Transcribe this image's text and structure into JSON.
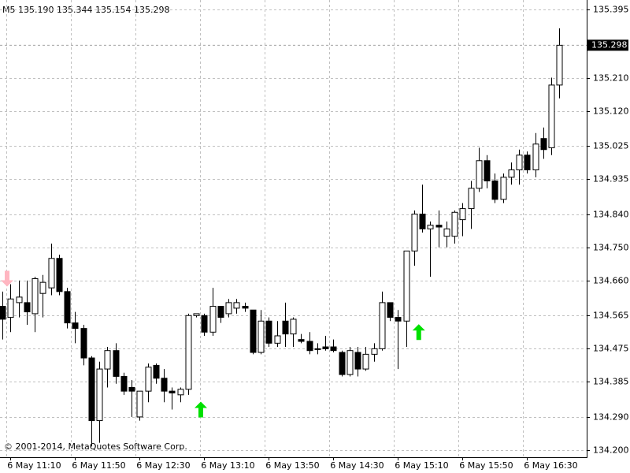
{
  "chart_data": {
    "type": "candlestick",
    "timeframe": "M5",
    "header_labels": [
      "135.190",
      "135.344",
      "135.154",
      "135.298"
    ],
    "copyright": "© 2001-2014, MetaQuotes Software Corp.",
    "current_price": {
      "value": 135.298,
      "label": "135.298"
    },
    "categories": [
      null,
      "6 May 11:10",
      null,
      null,
      null,
      null,
      null,
      null,
      null,
      "6 May 11:50",
      null,
      null,
      null,
      null,
      null,
      null,
      null,
      "6 May 12:30",
      null,
      null,
      null,
      null,
      null,
      null,
      null,
      "6 May 13:10",
      null,
      null,
      null,
      null,
      null,
      null,
      null,
      "6 May 13:50",
      null,
      null,
      null,
      null,
      null,
      null,
      null,
      "6 May 14:30",
      null,
      null,
      null,
      null,
      null,
      null,
      null,
      "6 May 15:10",
      null,
      null,
      null,
      null,
      null,
      null,
      null,
      "6 May 15:50",
      null,
      null,
      null,
      null,
      null,
      null,
      null,
      "6 May 16:30",
      null,
      null,
      null,
      null
    ],
    "open": [
      134.59,
      134.56,
      134.6,
      134.6,
      134.57,
      134.625,
      134.64,
      134.72,
      134.63,
      134.545,
      134.53,
      134.45,
      134.28,
      134.42,
      134.47,
      134.4,
      134.37,
      134.29,
      134.36,
      134.43,
      134.395,
      134.36,
      134.35,
      134.365,
      134.565,
      134.565,
      134.52,
      134.59,
      134.57,
      134.585,
      134.59,
      134.58,
      134.465,
      134.55,
      134.49,
      134.55,
      134.515,
      134.5,
      134.495,
      134.475,
      134.48,
      134.48,
      134.465,
      134.405,
      134.465,
      134.42,
      134.46,
      134.475,
      134.6,
      134.56,
      134.55,
      134.74,
      134.84,
      134.8,
      134.81,
      134.78,
      134.78,
      134.825,
      134.855,
      134.91,
      134.985,
      134.93,
      134.88,
      134.94,
      134.96,
      135.0,
      134.96,
      135.045,
      135.02,
      135.19
    ],
    "high": [
      134.63,
      134.65,
      134.66,
      134.66,
      134.67,
      134.675,
      134.76,
      134.73,
      134.64,
      134.575,
      134.54,
      134.455,
      134.44,
      134.48,
      134.49,
      134.41,
      134.39,
      134.36,
      134.435,
      134.435,
      134.42,
      134.37,
      134.37,
      134.57,
      134.57,
      134.57,
      134.64,
      134.59,
      134.61,
      134.61,
      134.6,
      134.58,
      134.58,
      134.56,
      134.55,
      134.6,
      134.56,
      134.515,
      134.52,
      134.49,
      134.51,
      134.5,
      134.47,
      134.48,
      134.48,
      134.48,
      134.49,
      134.63,
      134.6,
      134.58,
      134.74,
      134.85,
      134.92,
      134.82,
      134.85,
      134.82,
      134.85,
      134.87,
      134.93,
      135.02,
      135.0,
      134.95,
      134.95,
      134.98,
      135.015,
      135.01,
      135.06,
      135.075,
      135.21,
      135.344
    ],
    "low": [
      134.5,
      134.52,
      134.56,
      134.54,
      134.52,
      134.56,
      134.62,
      134.62,
      134.53,
      134.49,
      134.43,
      134.21,
      134.22,
      134.37,
      134.38,
      134.35,
      134.29,
      134.28,
      134.33,
      134.38,
      134.33,
      134.31,
      134.33,
      134.35,
      134.56,
      134.51,
      134.51,
      134.545,
      134.56,
      134.57,
      134.575,
      134.46,
      134.46,
      134.48,
      134.48,
      134.48,
      134.48,
      134.49,
      134.46,
      134.46,
      134.47,
      134.465,
      134.4,
      134.4,
      134.4,
      134.415,
      134.44,
      134.47,
      134.55,
      134.42,
      134.48,
      134.7,
      134.79,
      134.67,
      134.75,
      134.75,
      134.76,
      134.78,
      134.8,
      134.9,
      134.91,
      134.87,
      134.87,
      134.92,
      134.92,
      134.95,
      134.94,
      134.99,
      135.0,
      135.154
    ],
    "close": [
      134.555,
      134.61,
      134.615,
      134.575,
      134.665,
      134.655,
      134.72,
      134.63,
      134.545,
      134.53,
      134.45,
      134.28,
      134.42,
      134.47,
      134.4,
      134.36,
      134.36,
      134.36,
      134.425,
      134.395,
      134.36,
      134.355,
      134.365,
      134.565,
      134.57,
      134.52,
      134.59,
      134.56,
      134.6,
      134.6,
      134.585,
      134.465,
      134.55,
      134.49,
      134.51,
      134.515,
      134.555,
      134.495,
      134.47,
      134.475,
      134.475,
      134.47,
      134.405,
      134.47,
      134.42,
      134.46,
      134.475,
      134.6,
      134.56,
      134.55,
      134.74,
      134.84,
      134.8,
      134.81,
      134.805,
      134.8,
      134.845,
      134.855,
      134.91,
      134.985,
      134.93,
      134.88,
      134.94,
      134.96,
      135.0,
      134.96,
      135.03,
      135.015,
      135.19,
      135.298
    ],
    "signals": [
      {
        "index": 0,
        "price": 134.665,
        "direction": "down",
        "color": "#ffb6c1"
      },
      {
        "index": 24,
        "price": 134.31,
        "direction": "up",
        "color": "#00e000"
      },
      {
        "index": 51,
        "price": 134.52,
        "direction": "up",
        "color": "#00e000"
      }
    ],
    "ylim": [
      134.2,
      135.395
    ],
    "yticks": [
      135.395,
      {
        "value": 135.21,
        "label": "135.210"
      },
      {
        "value": 135.12,
        "label": "135.120"
      },
      135.025,
      134.935,
      {
        "value": 134.84,
        "label": "134.840"
      },
      {
        "value": 134.75,
        "label": "134.750"
      },
      {
        "value": 134.66,
        "label": "134.660"
      },
      134.565,
      134.475,
      134.385,
      {
        "value": 134.29,
        "label": "134.290"
      },
      {
        "value": 134.2,
        "label": "134.200"
      }
    ],
    "grid": true,
    "bull_color": "#ffffff",
    "bear_color": "#000000"
  }
}
